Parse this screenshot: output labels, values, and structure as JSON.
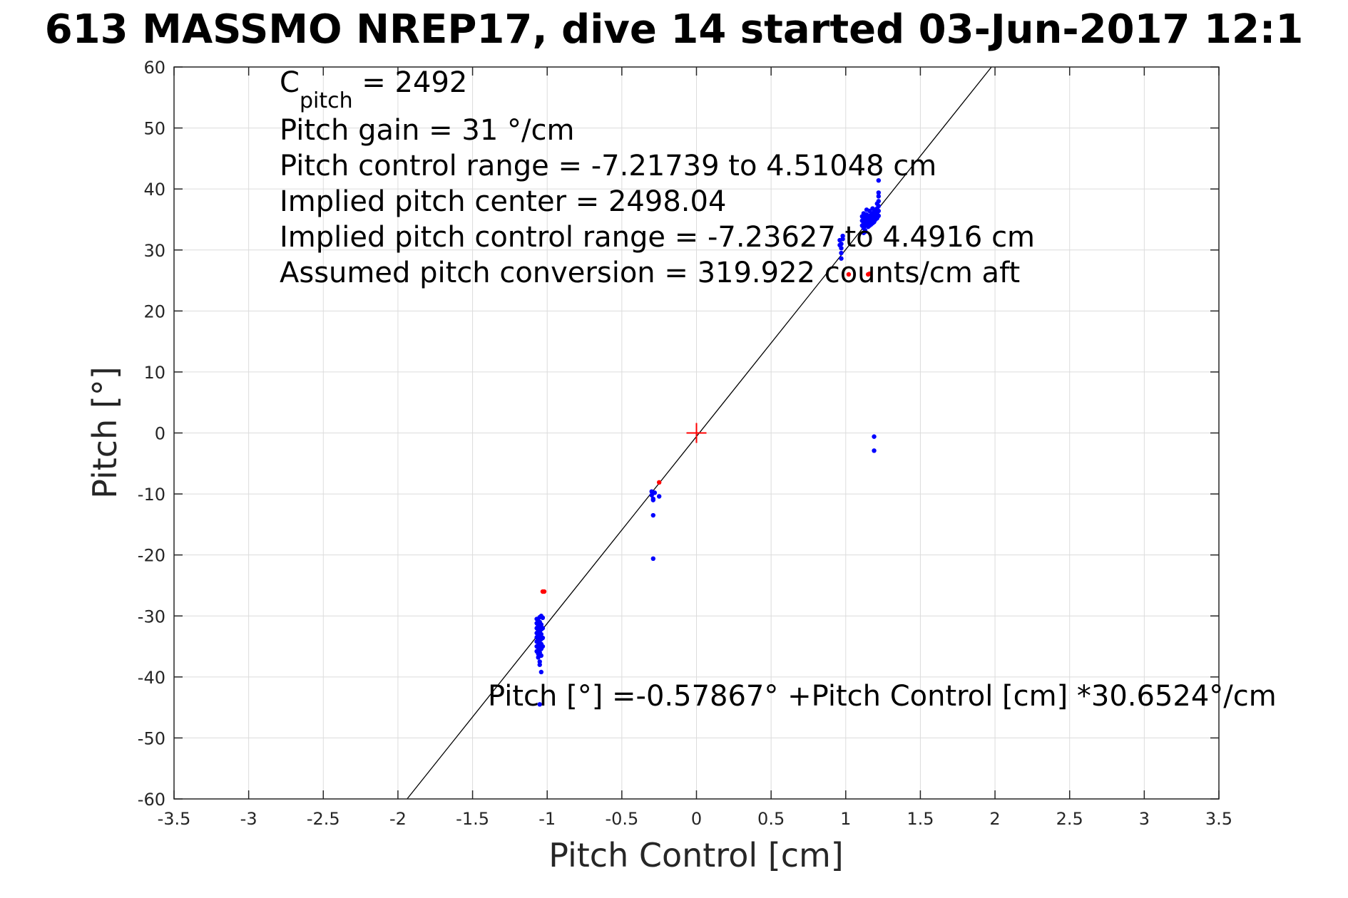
{
  "chart_data": {
    "type": "scatter",
    "title": "613 MASSMO NREP17, dive 14 started 03-Jun-2017 12:1",
    "xlabel": "Pitch Control [cm]",
    "ylabel": "Pitch [°]",
    "xlim": [
      -3.5,
      3.5
    ],
    "ylim": [
      -60,
      60
    ],
    "grid": true,
    "x_ticks": [
      -3.5,
      -3,
      -2.5,
      -2,
      -1.5,
      -1,
      -0.5,
      0,
      0.5,
      1,
      1.5,
      2,
      2.5,
      3,
      3.5
    ],
    "x_tick_labels": [
      "-3.5",
      "-3",
      "-2.5",
      "-2",
      "-1.5",
      "-1",
      "-0.5",
      "0",
      "0.5",
      "1",
      "1.5",
      "2",
      "2.5",
      "3",
      "3.5"
    ],
    "y_ticks": [
      -60,
      -50,
      -40,
      -30,
      -20,
      -10,
      0,
      10,
      20,
      30,
      40,
      50,
      60
    ],
    "y_tick_labels": [
      "-60",
      "-50",
      "-40",
      "-30",
      "-20",
      "-10",
      "0",
      "10",
      "20",
      "30",
      "40",
      "50",
      "60"
    ],
    "annotations": {
      "c_pitch_main": "C",
      "c_pitch_sub": "pitch",
      "c_pitch_rest": " = 2492",
      "lines": [
        "Pitch gain = 31 °/cm",
        "Pitch control range = -7.21739 to 4.51048 cm",
        "Implied pitch center = 2498.04",
        "Implied pitch control range = -7.23627 to 4.4916 cm",
        "Assumed pitch conversion = 319.922 counts/cm aft"
      ],
      "fit_equation": "Pitch [°] =-0.57867° +Pitch Control [cm] *30.6524°/cm"
    },
    "fit_line": {
      "intercept": -0.57867,
      "slope": 30.6524,
      "color": "#000000"
    },
    "center_marker": {
      "x": 0,
      "y": 0,
      "color": "#ff0000"
    },
    "series": [
      {
        "color": "#0000ff",
        "points": [
          [
            -1.07,
            -30.5
          ],
          [
            -1.07,
            -31.2
          ],
          [
            -1.07,
            -32.0
          ],
          [
            -1.07,
            -32.8
          ],
          [
            -1.07,
            -33.5
          ],
          [
            -1.07,
            -34.2
          ],
          [
            -1.07,
            -35.0
          ],
          [
            -1.07,
            -35.8
          ],
          [
            -1.06,
            -30.8
          ],
          [
            -1.06,
            -31.6
          ],
          [
            -1.06,
            -32.4
          ],
          [
            -1.06,
            -33.2
          ],
          [
            -1.06,
            -34.0
          ],
          [
            -1.06,
            -34.8
          ],
          [
            -1.06,
            -35.6
          ],
          [
            -1.06,
            -36.2
          ],
          [
            -1.05,
            -30.2
          ],
          [
            -1.05,
            -31.0
          ],
          [
            -1.05,
            -31.8
          ],
          [
            -1.05,
            -32.6
          ],
          [
            -1.05,
            -33.4
          ],
          [
            -1.05,
            -34.4
          ],
          [
            -1.05,
            -35.2
          ],
          [
            -1.05,
            -36.0
          ],
          [
            -1.04,
            -30.0
          ],
          [
            -1.04,
            -31.4
          ],
          [
            -1.04,
            -32.2
          ],
          [
            -1.04,
            -33.0
          ],
          [
            -1.04,
            -33.8
          ],
          [
            -1.04,
            -34.6
          ],
          [
            -1.04,
            -35.4
          ],
          [
            -1.03,
            -30.3
          ],
          [
            -1.03,
            -32.0
          ],
          [
            -1.03,
            -33.6
          ],
          [
            -1.03,
            -35.0
          ],
          [
            -1.06,
            -36.8
          ],
          [
            -1.05,
            -37.5
          ],
          [
            -1.05,
            -38.0
          ],
          [
            -1.04,
            -36.5
          ],
          [
            -1.04,
            -39.2
          ],
          [
            -1.05,
            -44.5
          ],
          [
            -0.3,
            -9.6
          ],
          [
            -0.3,
            -10.2
          ],
          [
            -0.29,
            -10.8
          ],
          [
            -0.29,
            -11.0
          ],
          [
            -0.28,
            -9.8
          ],
          [
            -0.25,
            -10.4
          ],
          [
            -0.29,
            -13.5
          ],
          [
            -0.29,
            -20.6
          ],
          [
            0.97,
            28.6
          ],
          [
            0.97,
            29.5
          ],
          [
            0.97,
            30.3
          ],
          [
            0.97,
            31.0
          ],
          [
            0.98,
            31.8
          ],
          [
            0.98,
            32.3
          ],
          [
            0.96,
            30.8
          ],
          [
            0.96,
            31.6
          ],
          [
            1.11,
            34.0
          ],
          [
            1.11,
            34.8
          ],
          [
            1.11,
            35.5
          ],
          [
            1.12,
            33.6
          ],
          [
            1.12,
            34.4
          ],
          [
            1.12,
            35.2
          ],
          [
            1.12,
            36.0
          ],
          [
            1.13,
            33.2
          ],
          [
            1.13,
            34.0
          ],
          [
            1.13,
            34.8
          ],
          [
            1.13,
            35.6
          ],
          [
            1.14,
            34.2
          ],
          [
            1.14,
            35.0
          ],
          [
            1.14,
            35.8
          ],
          [
            1.14,
            36.6
          ],
          [
            1.15,
            33.8
          ],
          [
            1.15,
            34.6
          ],
          [
            1.15,
            35.4
          ],
          [
            1.16,
            34.0
          ],
          [
            1.16,
            34.8
          ],
          [
            1.16,
            35.6
          ],
          [
            1.16,
            36.4
          ],
          [
            1.17,
            34.2
          ],
          [
            1.17,
            35.0
          ],
          [
            1.17,
            35.8
          ],
          [
            1.18,
            34.4
          ],
          [
            1.18,
            35.2
          ],
          [
            1.18,
            36.0
          ],
          [
            1.18,
            36.8
          ],
          [
            1.19,
            34.6
          ],
          [
            1.19,
            35.4
          ],
          [
            1.19,
            36.2
          ],
          [
            1.2,
            35.0
          ],
          [
            1.2,
            35.8
          ],
          [
            1.2,
            36.6
          ],
          [
            1.21,
            35.2
          ],
          [
            1.21,
            36.0
          ],
          [
            1.21,
            36.8
          ],
          [
            1.21,
            37.6
          ],
          [
            1.22,
            35.6
          ],
          [
            1.22,
            36.4
          ],
          [
            1.22,
            37.2
          ],
          [
            1.22,
            38.0
          ],
          [
            1.22,
            38.8
          ],
          [
            1.22,
            39.4
          ],
          [
            1.22,
            41.4
          ],
          [
            1.12,
            32.8
          ],
          [
            1.13,
            33.0
          ],
          [
            1.19,
            -0.6
          ],
          [
            1.19,
            -2.9
          ]
        ]
      },
      {
        "color": "#ff0000",
        "points": [
          [
            -1.03,
            -26.0
          ],
          [
            -1.02,
            -26.0
          ],
          [
            -0.25,
            -8.1
          ],
          [
            1.02,
            26.0
          ],
          [
            1.15,
            26.0
          ],
          [
            1.16,
            26.1
          ]
        ]
      }
    ]
  }
}
